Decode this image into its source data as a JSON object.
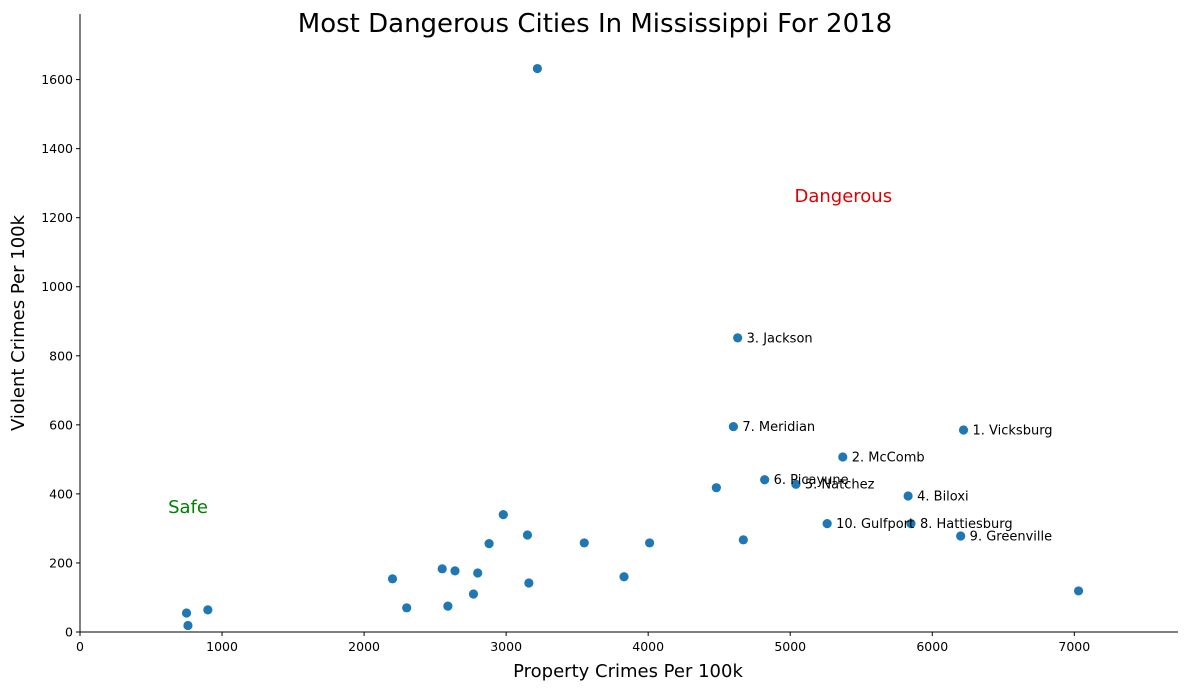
{
  "chart_data": {
    "type": "scatter",
    "title": "Most Dangerous Cities In Mississippi For 2018",
    "xlabel": "Property Crimes Per 100k",
    "ylabel": "Violent Crimes Per 100k",
    "xlim": [
      0,
      7730
    ],
    "ylim": [
      0,
      1790
    ],
    "xticks": [
      0,
      1000,
      2000,
      3000,
      4000,
      5000,
      6000,
      7000
    ],
    "yticks": [
      0,
      200,
      400,
      600,
      800,
      1000,
      1200,
      1400,
      1600
    ],
    "grid": false,
    "marker_color": "#1f77b4",
    "annotations": [
      {
        "text": "Dangerous",
        "x": 5030,
        "y": 1245,
        "color": "#e00000"
      },
      {
        "text": "Safe",
        "x": 620,
        "y": 345,
        "color": "#008000"
      }
    ],
    "points": [
      {
        "x": 6220,
        "y": 585,
        "label": "1. Vicksburg"
      },
      {
        "x": 5370,
        "y": 507,
        "label": "2. McComb"
      },
      {
        "x": 4630,
        "y": 852,
        "label": "3. Jackson"
      },
      {
        "x": 5830,
        "y": 394,
        "label": "4. Biloxi"
      },
      {
        "x": 5040,
        "y": 428,
        "label": "5. Natchez"
      },
      {
        "x": 4820,
        "y": 441,
        "label": "6. Picayune"
      },
      {
        "x": 4600,
        "y": 595,
        "label": "7. Meridian"
      },
      {
        "x": 5850,
        "y": 314,
        "label": "8. Hattiesburg"
      },
      {
        "x": 6200,
        "y": 278,
        "label": "9. Greenville"
      },
      {
        "x": 5260,
        "y": 314,
        "label": "10. Gulfport"
      },
      {
        "x": 3220,
        "y": 1632
      },
      {
        "x": 4480,
        "y": 418
      },
      {
        "x": 2980,
        "y": 340
      },
      {
        "x": 3150,
        "y": 281
      },
      {
        "x": 2880,
        "y": 256
      },
      {
        "x": 3550,
        "y": 258
      },
      {
        "x": 4010,
        "y": 258
      },
      {
        "x": 4670,
        "y": 267
      },
      {
        "x": 2550,
        "y": 183
      },
      {
        "x": 2640,
        "y": 177
      },
      {
        "x": 2800,
        "y": 171
      },
      {
        "x": 2200,
        "y": 154
      },
      {
        "x": 3160,
        "y": 142
      },
      {
        "x": 3830,
        "y": 160
      },
      {
        "x": 2770,
        "y": 110
      },
      {
        "x": 2300,
        "y": 70
      },
      {
        "x": 2590,
        "y": 75
      },
      {
        "x": 7030,
        "y": 119
      },
      {
        "x": 900,
        "y": 64
      },
      {
        "x": 750,
        "y": 55
      },
      {
        "x": 760,
        "y": 19
      }
    ]
  }
}
